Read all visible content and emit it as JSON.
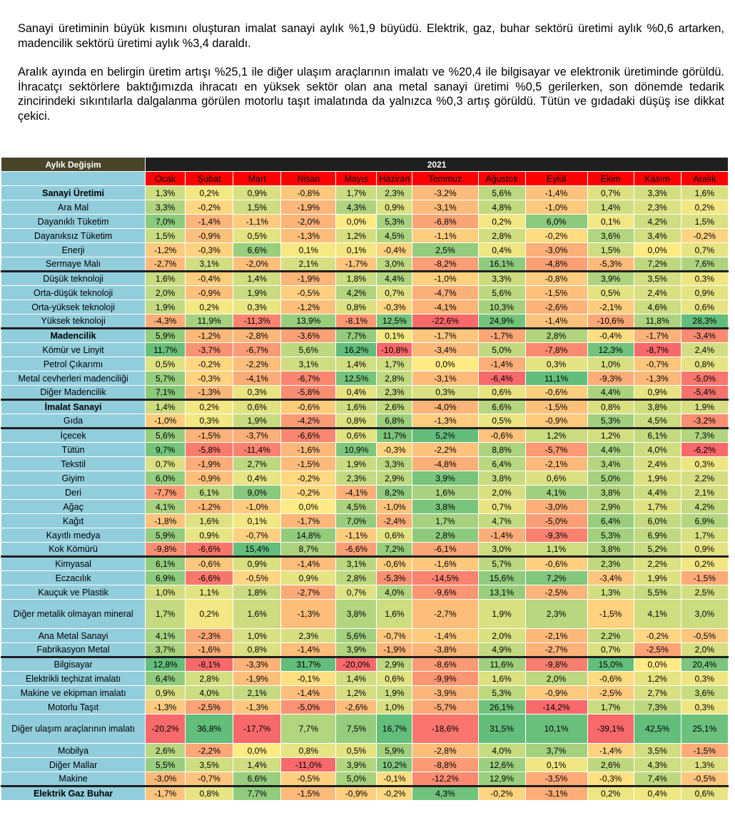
{
  "paragraphs": [
    "Sanayi üretiminin büyük kısmını oluşturan imalat sanayi aylık %1,9 büyüdü. Elektrik, gaz, buhar sektörü üretimi aylık %0,6 artarken, madencilik sektörü üretimi aylık %3,4 daraldı.",
    "Aralık ayında en belirgin üretim artışı %25,1 ile diğer ulaşım araçlarının imalatı ve %20,4 ile bilgisayar ve elektronik üretiminde görüldü. İhracatçı sektörlere baktığımızda ihracatı en yüksek sektör olan ana metal sanayi üretimi %0,5 gerilerken, son dönemde tedarik zincirindeki sıkıntılarla dalgalanma görülen motorlu taşıt imalatında da yalnızca %0,3 artış görüldü. Tütün ve gıdadaki düşüş ise dikkat çekici."
  ],
  "table": {
    "header_label": "Aylık Değişim",
    "year": "2021",
    "months": [
      "Ocak",
      "Şubat",
      "Mart",
      "Nisan",
      "Mayıs",
      "Haziran",
      "Temmuz",
      "Ağustos",
      "Eylül",
      "Ekim",
      "Kasım",
      "Aralık"
    ],
    "colors": {
      "header_dark": "#494529",
      "year_bar": "#1f1f1f",
      "month_bar": "#ff0000",
      "category": "#92cddc"
    },
    "rows": [
      {
        "name": "Sanayi Üretimi",
        "bold": true,
        "sep": false,
        "values": [
          "1,3%",
          "0,2%",
          "0,9%",
          "-0,8%",
          "1,7%",
          "2,3%",
          "-3,2%",
          "5,6%",
          "-1,4%",
          "0,7%",
          "3,3%",
          "1,6%"
        ]
      },
      {
        "name": "Ara Mal",
        "bold": false,
        "sep": false,
        "values": [
          "3,3%",
          "-0,2%",
          "1,5%",
          "-1,9%",
          "4,3%",
          "0,9%",
          "-3,1%",
          "4,8%",
          "-1,0%",
          "1,4%",
          "2,3%",
          "0,2%"
        ]
      },
      {
        "name": "Dayanıklı Tüketim",
        "bold": false,
        "sep": false,
        "values": [
          "7,0%",
          "-1,4%",
          "-1,1%",
          "-2,0%",
          "0,0%",
          "5,3%",
          "-6,8%",
          "0,2%",
          "6,0%",
          "0,1%",
          "4,2%",
          "1,5%"
        ]
      },
      {
        "name": "Dayanıksız Tüketim",
        "bold": false,
        "sep": false,
        "values": [
          "1,5%",
          "-0,9%",
          "0,5%",
          "-1,3%",
          "1,2%",
          "4,5%",
          "-1,1%",
          "2,8%",
          "-0,2%",
          "3,6%",
          "3,4%",
          "-0,2%"
        ]
      },
      {
        "name": "Enerji",
        "bold": false,
        "sep": false,
        "values": [
          "-1,2%",
          "-0,3%",
          "6,6%",
          "0,1%",
          "0,1%",
          "-0,4%",
          "2,5%",
          "0,4%",
          "-3,0%",
          "1,5%",
          "0,0%",
          "0,7%"
        ]
      },
      {
        "name": "Sermaye Malı",
        "bold": false,
        "sep": false,
        "values": [
          "-2,7%",
          "3,1%",
          "-2,0%",
          "2,1%",
          "-1,7%",
          "3,0%",
          "-8,2%",
          "16,1%",
          "-4,8%",
          "-5,3%",
          "7,2%",
          "7,6%"
        ]
      },
      {
        "name": "Düşük teknoloji",
        "bold": false,
        "sep": true,
        "values": [
          "1,6%",
          "-0,4%",
          "1,4%",
          "-1,9%",
          "1,8%",
          "4,4%",
          "-1,0%",
          "3,3%",
          "-0,8%",
          "3,9%",
          "3,5%",
          "0,3%"
        ]
      },
      {
        "name": "Orta-düşük teknoloji",
        "bold": false,
        "sep": false,
        "values": [
          "2,0%",
          "-0,9%",
          "1,9%",
          "-0,5%",
          "4,2%",
          "0,7%",
          "-4,7%",
          "5,6%",
          "-1,5%",
          "0,5%",
          "2,4%",
          "0,9%"
        ]
      },
      {
        "name": "Orta-yüksek teknoloji",
        "bold": false,
        "sep": false,
        "values": [
          "1,9%",
          "0,2%",
          "0,3%",
          "-1,2%",
          "0,8%",
          "-0,3%",
          "-4,1%",
          "10,3%",
          "-2,6%",
          "-2,1%",
          "4,6%",
          "0,6%"
        ]
      },
      {
        "name": "Yüksek teknoloji",
        "bold": false,
        "sep": false,
        "values": [
          "-4,3%",
          "11,9%",
          "-11,3%",
          "13,9%",
          "-8,1%",
          "12,5%",
          "-22,6%",
          "24,9%",
          "-1,4%",
          "-10,6%",
          "11,8%",
          "28,3%"
        ]
      },
      {
        "name": "Madencilik",
        "bold": true,
        "sep": true,
        "values": [
          "5,9%",
          "-1,2%",
          "-2,8%",
          "-3,6%",
          "7,7%",
          "0,1%",
          "-1,7%",
          "-1,7%",
          "2,8%",
          "-0,4%",
          "-1,7%",
          "-3,4%"
        ]
      },
      {
        "name": "Kömür ve Linyit",
        "bold": false,
        "sep": false,
        "values": [
          "11,7%",
          "-3,7%",
          "-6,7%",
          "5,6%",
          "16,2%",
          "-10,8%",
          "-3,4%",
          "5,0%",
          "-7,8%",
          "12,3%",
          "-8,7%",
          "2,4%"
        ]
      },
      {
        "name": "Petrol Çıkarımı",
        "bold": false,
        "sep": false,
        "values": [
          "0,5%",
          "-0,2%",
          "-2,2%",
          "3,1%",
          "1,4%",
          "1,7%",
          "0,0%",
          "-1,4%",
          "0,3%",
          "1,0%",
          "-0,7%",
          "0,8%"
        ]
      },
      {
        "name": "Metal cevherleri madenciliği",
        "bold": false,
        "sep": false,
        "values": [
          "5,7%",
          "-0,3%",
          "-4,1%",
          "-6,7%",
          "12,5%",
          "2,8%",
          "-3,1%",
          "-6,4%",
          "11,1%",
          "-9,3%",
          "-1,3%",
          "-5,0%"
        ]
      },
      {
        "name": "Diğer Madencilik",
        "bold": false,
        "sep": false,
        "values": [
          "7,1%",
          "-1,3%",
          "0,3%",
          "-5,8%",
          "0,4%",
          "2,3%",
          "0,3%",
          "0,6%",
          "-0,6%",
          "4,4%",
          "0,9%",
          "-5,4%"
        ]
      },
      {
        "name": "İmalat Sanayi",
        "bold": true,
        "sep": true,
        "values": [
          "1,4%",
          "0,2%",
          "0,6%",
          "-0,6%",
          "1,6%",
          "2,6%",
          "-4,0%",
          "6,6%",
          "-1,5%",
          "0,8%",
          "3,8%",
          "1,9%"
        ]
      },
      {
        "name": "Gıda",
        "bold": false,
        "sep": false,
        "values": [
          "-1,0%",
          "0,3%",
          "1,9%",
          "-4,2%",
          "0,8%",
          "6,8%",
          "-1,3%",
          "0,5%",
          "-0,9%",
          "5,3%",
          "4,5%",
          "-3,2%"
        ]
      },
      {
        "name": "İçecek",
        "bold": false,
        "sep": true,
        "values": [
          "5,6%",
          "-1,5%",
          "-3,7%",
          "-6,6%",
          "0,6%",
          "11,7%",
          "5,2%",
          "-0,6%",
          "1,2%",
          "1,2%",
          "6,1%",
          "7,3%"
        ]
      },
      {
        "name": "Tütün",
        "bold": false,
        "sep": false,
        "values": [
          "9,7%",
          "-5,8%",
          "-11,4%",
          "-1,6%",
          "10,9%",
          "-0,3%",
          "-2,2%",
          "8,8%",
          "-5,7%",
          "4,4%",
          "4,0%",
          "-6,2%"
        ]
      },
      {
        "name": "Tekstil",
        "bold": false,
        "sep": false,
        "values": [
          "0,7%",
          "-1,9%",
          "2,7%",
          "-1,5%",
          "1,9%",
          "3,3%",
          "-4,8%",
          "6,4%",
          "-2,1%",
          "3,4%",
          "2,4%",
          "0,3%"
        ]
      },
      {
        "name": "Giyim",
        "bold": false,
        "sep": false,
        "values": [
          "6,0%",
          "-0,9%",
          "0,4%",
          "-0,2%",
          "2,3%",
          "2,9%",
          "3,9%",
          "3,8%",
          "0,6%",
          "5,0%",
          "1,9%",
          "2,2%"
        ]
      },
      {
        "name": "Deri",
        "bold": false,
        "sep": false,
        "values": [
          "-7,7%",
          "6,1%",
          "9,0%",
          "-0,2%",
          "-4,1%",
          "8,2%",
          "1,6%",
          "2,0%",
          "4,1%",
          "3,8%",
          "4,4%",
          "2,1%"
        ]
      },
      {
        "name": "Ağaç",
        "bold": false,
        "sep": false,
        "values": [
          "4,1%",
          "-1,2%",
          "-1,0%",
          "0,0%",
          "4,5%",
          "-1,0%",
          "3,8%",
          "0,7%",
          "-3,0%",
          "2,9%",
          "1,7%",
          "4,2%"
        ]
      },
      {
        "name": "Kağıt",
        "bold": false,
        "sep": false,
        "values": [
          "-1,8%",
          "1,6%",
          "0,1%",
          "-1,7%",
          "7,0%",
          "-2,4%",
          "1,7%",
          "4,7%",
          "-5,0%",
          "6,4%",
          "6,0%",
          "6,9%"
        ]
      },
      {
        "name": "Kayıtlı medya",
        "bold": false,
        "sep": false,
        "values": [
          "5,9%",
          "0,9%",
          "-0,7%",
          "14,8%",
          "-1,1%",
          "0,6%",
          "2,8%",
          "-1,4%",
          "-9,3%",
          "5,3%",
          "6,9%",
          "1,7%"
        ]
      },
      {
        "name": "Kok Kömürü",
        "bold": false,
        "sep": false,
        "values": [
          "-9,8%",
          "-6,6%",
          "15,4%",
          "8,7%",
          "-6,6%",
          "7,2%",
          "-6,1%",
          "3,0%",
          "1,1%",
          "3,8%",
          "5,2%",
          "0,9%"
        ]
      },
      {
        "name": "Kimyasal",
        "bold": false,
        "sep": true,
        "values": [
          "6,1%",
          "-0,6%",
          "0,9%",
          "-1,4%",
          "3,1%",
          "-0,6%",
          "-1,6%",
          "5,7%",
          "-0,6%",
          "2,3%",
          "2,2%",
          "0,2%"
        ]
      },
      {
        "name": "Eczacılık",
        "bold": false,
        "sep": false,
        "values": [
          "6,9%",
          "-6,6%",
          "-0,5%",
          "0,9%",
          "2,8%",
          "-5,3%",
          "-14,5%",
          "15,6%",
          "7,2%",
          "-3,4%",
          "1,9%",
          "-1,5%"
        ]
      },
      {
        "name": "Kauçuk ve Plastik",
        "bold": false,
        "sep": false,
        "values": [
          "1,0%",
          "1,1%",
          "1,8%",
          "-2,7%",
          "0,7%",
          "4,0%",
          "-9,6%",
          "13,1%",
          "-2,5%",
          "1,3%",
          "5,5%",
          "2,5%"
        ]
      },
      {
        "name": "Diğer metalik olmayan mineral",
        "bold": false,
        "sep": false,
        "tall": true,
        "values": [
          "1,7%",
          "0,2%",
          "1,6%",
          "-1,3%",
          "3,8%",
          "1,6%",
          "-2,7%",
          "1,9%",
          "2,3%",
          "-1,5%",
          "4,1%",
          "3,0%"
        ]
      },
      {
        "name": "Ana Metal Sanayi",
        "bold": false,
        "sep": false,
        "values": [
          "4,1%",
          "-2,3%",
          "1,0%",
          "2,3%",
          "5,6%",
          "-0,7%",
          "-1,4%",
          "2,0%",
          "-2,1%",
          "2,2%",
          "-0,2%",
          "-0,5%"
        ]
      },
      {
        "name": "Fabrikasyon Metal",
        "bold": false,
        "sep": false,
        "values": [
          "3,7%",
          "-1,6%",
          "0,8%",
          "-1,4%",
          "3,9%",
          "-1,9%",
          "-3,8%",
          "4,9%",
          "-2,7%",
          "0,7%",
          "-2,5%",
          "2,0%"
        ]
      },
      {
        "name": "Bilgisayar",
        "bold": false,
        "sep": true,
        "values": [
          "12,8%",
          "-8,1%",
          "-3,3%",
          "31,7%",
          "-20,0%",
          "2,9%",
          "-8,6%",
          "11,6%",
          "-9,8%",
          "15,0%",
          "0,0%",
          "20,4%"
        ]
      },
      {
        "name": "Elektrikli teçhizat imalatı",
        "bold": false,
        "sep": false,
        "values": [
          "6,4%",
          "2,8%",
          "-1,9%",
          "-0,1%",
          "1,4%",
          "0,6%",
          "-9,9%",
          "1,6%",
          "2,0%",
          "-0,6%",
          "1,2%",
          "0,3%"
        ]
      },
      {
        "name": "Makine ve ekipman imalatı",
        "bold": false,
        "sep": false,
        "values": [
          "0,9%",
          "4,0%",
          "2,1%",
          "-1,4%",
          "1,2%",
          "1,9%",
          "-3,9%",
          "5,3%",
          "-0,9%",
          "-2,5%",
          "2,7%",
          "3,6%"
        ]
      },
      {
        "name": "Motorlu Taşıt",
        "bold": false,
        "sep": false,
        "values": [
          "-1,3%",
          "-2,5%",
          "-1,3%",
          "-5,0%",
          "-2,6%",
          "1,0%",
          "-5,7%",
          "26,1%",
          "-14,2%",
          "1,7%",
          "7,3%",
          "0,3%"
        ]
      },
      {
        "name": "Diğer ulaşım araçlarının imalatı",
        "bold": false,
        "sep": false,
        "tall": true,
        "values": [
          "-20,2%",
          "36,8%",
          "-17,7%",
          "7,7%",
          "7,5%",
          "16,7%",
          "-18,6%",
          "31,5%",
          "10,1%",
          "-39,1%",
          "42,5%",
          "25,1%"
        ]
      },
      {
        "name": "Mobilya",
        "bold": false,
        "sep": false,
        "values": [
          "2,6%",
          "-2,2%",
          "0,0%",
          "0,8%",
          "0,5%",
          "5,9%",
          "-2,8%",
          "4,0%",
          "3,7%",
          "-1,4%",
          "3,5%",
          "-1,5%"
        ]
      },
      {
        "name": "Diğer Mallar",
        "bold": false,
        "sep": false,
        "values": [
          "5,5%",
          "3,5%",
          "1,4%",
          "-11,0%",
          "3,9%",
          "10,2%",
          "-8,8%",
          "12,6%",
          "0,1%",
          "2,6%",
          "4,3%",
          "1,3%"
        ]
      },
      {
        "name": "Makine",
        "bold": false,
        "sep": false,
        "values": [
          "-3,0%",
          "-0,7%",
          "6,6%",
          "-0,5%",
          "5,0%",
          "-0,1%",
          "-12,2%",
          "12,9%",
          "-3,5%",
          "-0,3%",
          "7,4%",
          "-0,5%"
        ]
      },
      {
        "name": "Elektrik Gaz Buhar",
        "bold": true,
        "sep": true,
        "values": [
          "-1,7%",
          "0,8%",
          "7,7%",
          "-1,5%",
          "-0,9%",
          "-0,2%",
          "4,3%",
          "-0,2%",
          "-3,1%",
          "0,2%",
          "0,4%",
          "0,6%"
        ]
      }
    ]
  }
}
